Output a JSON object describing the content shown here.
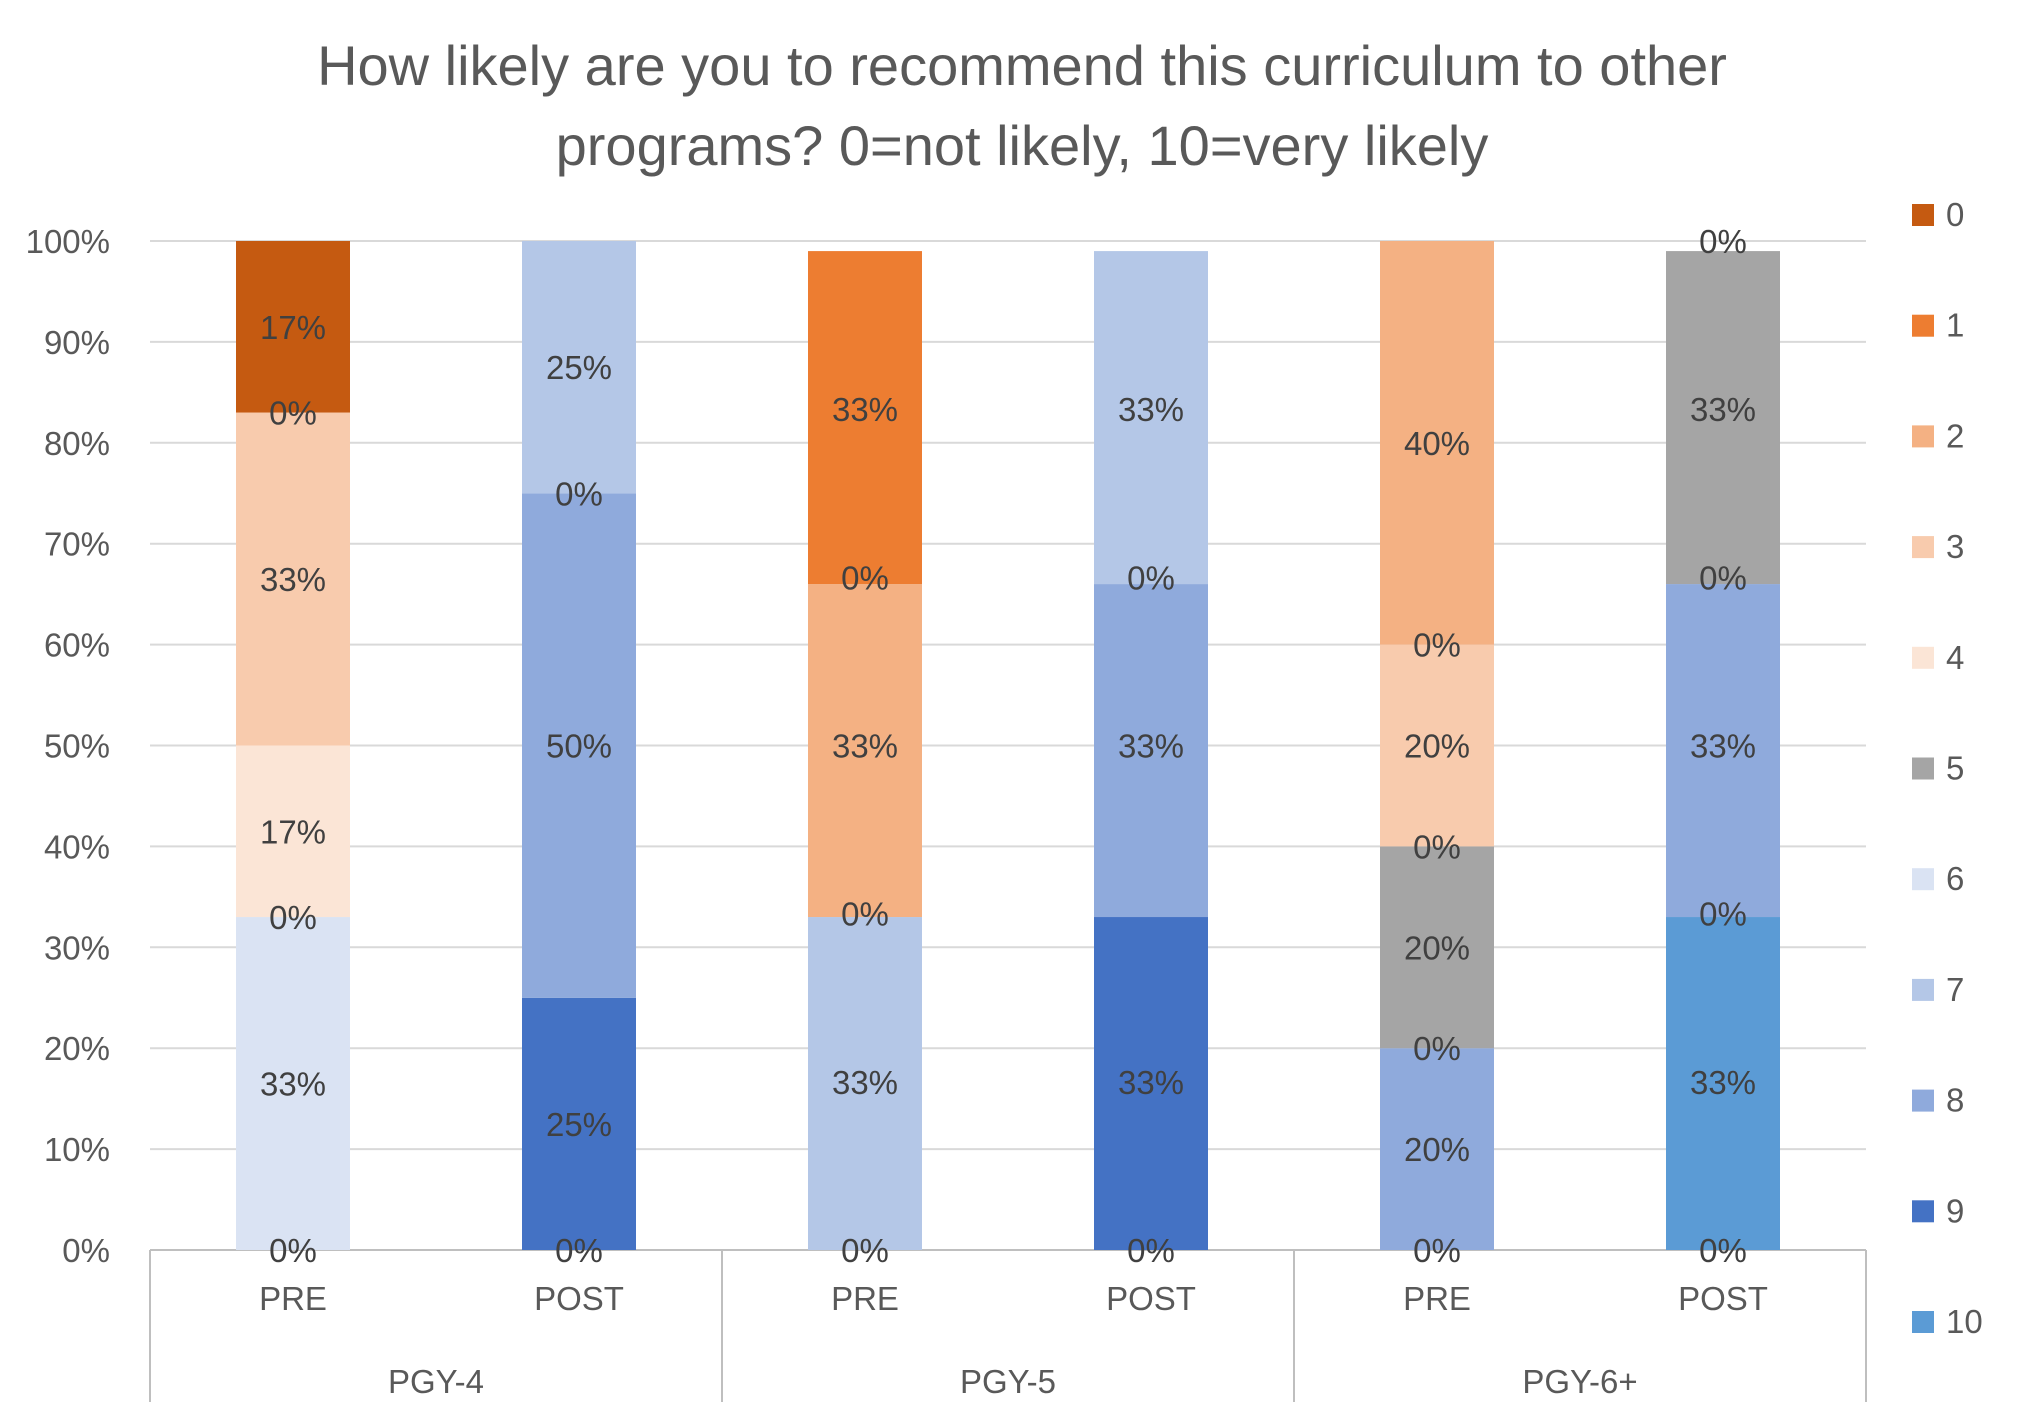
{
  "chart_data": {
    "type": "bar",
    "stacked": true,
    "percent_stacked": true,
    "title": "How likely are you to recommend this curriculum to other programs? 0=not likely, 10=very likely",
    "title_lines": [
      "How likely are you to recommend this curriculum to other",
      "programs? 0=not likely, 10=very likely"
    ],
    "ylim": [
      0,
      100
    ],
    "yticks": [
      "0%",
      "10%",
      "20%",
      "30%",
      "40%",
      "50%",
      "60%",
      "70%",
      "80%",
      "90%",
      "100%"
    ],
    "grid": true,
    "legend_position": "right",
    "groups": [
      "PGY-4",
      "PGY-5",
      "PGY-6+"
    ],
    "categories": [
      "PRE",
      "POST",
      "PRE",
      "POST",
      "PRE",
      "POST"
    ],
    "series": [
      {
        "name": "0",
        "color": "#C55A11",
        "values": [
          17,
          0,
          0,
          0,
          0,
          0
        ]
      },
      {
        "name": "1",
        "color": "#ED7D31",
        "values": [
          0,
          0,
          33,
          0,
          0,
          0
        ]
      },
      {
        "name": "2",
        "color": "#F4B183",
        "values": [
          0,
          0,
          33,
          0,
          40,
          0
        ]
      },
      {
        "name": "3",
        "color": "#F8CBAD",
        "values": [
          33,
          0,
          0,
          0,
          20,
          0
        ]
      },
      {
        "name": "4",
        "color": "#FBE5D6",
        "values": [
          17,
          0,
          0,
          0,
          0,
          0
        ]
      },
      {
        "name": "5",
        "color": "#A5A5A5",
        "values": [
          0,
          0,
          0,
          0,
          20,
          33
        ]
      },
      {
        "name": "6",
        "color": "#DAE3F3",
        "values": [
          33,
          0,
          0,
          0,
          0,
          0
        ]
      },
      {
        "name": "7",
        "color": "#B4C7E7",
        "values": [
          0,
          25,
          33,
          33,
          0,
          0
        ]
      },
      {
        "name": "8",
        "color": "#8FAADC",
        "values": [
          0,
          50,
          0,
          33,
          20,
          33
        ]
      },
      {
        "name": "9",
        "color": "#4472C4",
        "values": [
          0,
          25,
          0,
          33,
          0,
          0
        ]
      },
      {
        "name": "10",
        "color": "#5B9BD5",
        "values": [
          0,
          0,
          0,
          0,
          0,
          33
        ]
      }
    ],
    "data_labels": [
      {
        "bar": 0,
        "series": "6",
        "text": "0%"
      },
      {
        "bar": 0,
        "series": "6",
        "text": "33%"
      },
      {
        "bar": 0,
        "series": "4",
        "text": "0%"
      },
      {
        "bar": 0,
        "series": "4",
        "text": "17%"
      },
      {
        "bar": 0,
        "series": "3",
        "text": "33%"
      },
      {
        "bar": 0,
        "series": "0",
        "text": "0%"
      },
      {
        "bar": 0,
        "series": "0",
        "text": "17%"
      },
      {
        "bar": 1,
        "series": "9",
        "text": "0%"
      },
      {
        "bar": 1,
        "series": "9",
        "text": "25%"
      },
      {
        "bar": 1,
        "series": "8",
        "text": "50%"
      },
      {
        "bar": 1,
        "series": "7",
        "text": "25%"
      },
      {
        "bar": 1,
        "series": "7",
        "text": "0%"
      },
      {
        "bar": 2,
        "series": "7",
        "text": "0%"
      },
      {
        "bar": 2,
        "series": "7",
        "text": "33%"
      },
      {
        "bar": 2,
        "series": "2",
        "text": "0%"
      },
      {
        "bar": 2,
        "series": "2",
        "text": "33%"
      },
      {
        "bar": 2,
        "series": "1",
        "text": "33%"
      },
      {
        "bar": 2,
        "series": "1",
        "text": "0%"
      },
      {
        "bar": 3,
        "series": "9",
        "text": "0%"
      },
      {
        "bar": 3,
        "series": "9",
        "text": "33%"
      },
      {
        "bar": 3,
        "series": "8",
        "text": "33%"
      },
      {
        "bar": 3,
        "series": "7",
        "text": "33%"
      },
      {
        "bar": 3,
        "series": "7",
        "text": "0%"
      },
      {
        "bar": 4,
        "series": "8",
        "text": "0%"
      },
      {
        "bar": 4,
        "series": "8",
        "text": "20%"
      },
      {
        "bar": 4,
        "series": "5",
        "text": "0%"
      },
      {
        "bar": 4,
        "series": "5",
        "text": "20%"
      },
      {
        "bar": 4,
        "series": "3",
        "text": "0%"
      },
      {
        "bar": 4,
        "series": "3",
        "text": "20%"
      },
      {
        "bar": 4,
        "series": "2",
        "text": "40%"
      },
      {
        "bar": 4,
        "series": "2",
        "text": "0%"
      },
      {
        "bar": 5,
        "series": "10",
        "text": "0%"
      },
      {
        "bar": 5,
        "series": "10",
        "text": "33%"
      },
      {
        "bar": 5,
        "series": "8",
        "text": "0%"
      },
      {
        "bar": 5,
        "series": "8",
        "text": "33%"
      },
      {
        "bar": 5,
        "series": "5",
        "text": "0%"
      },
      {
        "bar": 5,
        "series": "5",
        "text": "33%"
      },
      {
        "bar": 5,
        "series": "5",
        "text": "0%"
      }
    ]
  }
}
